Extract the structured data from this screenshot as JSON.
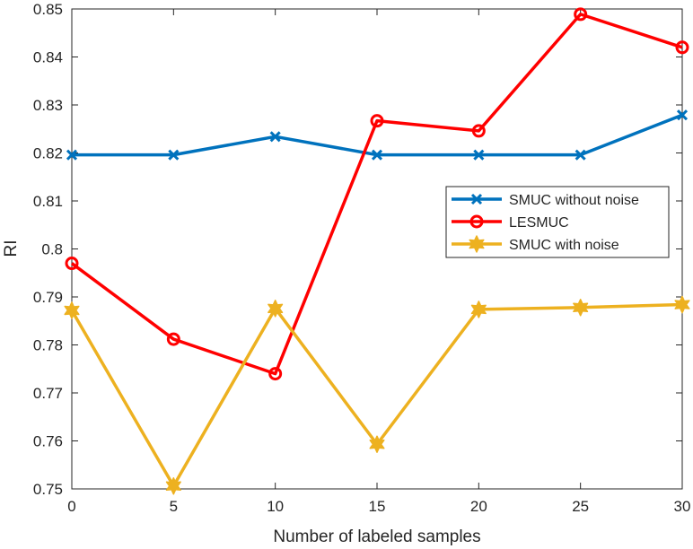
{
  "chart_data": {
    "type": "line",
    "title": "",
    "xlabel": "Number of labeled samples",
    "ylabel": "RI",
    "xlim": [
      0,
      30
    ],
    "ylim": [
      0.75,
      0.85
    ],
    "x_ticks": [
      0,
      5,
      10,
      15,
      20,
      25,
      30
    ],
    "y_ticks": [
      0.75,
      0.76,
      0.77,
      0.78,
      0.79,
      0.8,
      0.81,
      0.82,
      0.83,
      0.84,
      0.85
    ],
    "y_tick_labels": [
      "0.75",
      "0.76",
      "0.77",
      "0.78",
      "0.79",
      "0.8",
      "0.81",
      "0.82",
      "0.83",
      "0.84",
      "0.85"
    ],
    "grid": false,
    "legend_position": "right",
    "x": [
      0,
      5,
      10,
      15,
      20,
      25,
      30
    ],
    "series": [
      {
        "name": "SMUC without noise",
        "color": "#0072BD",
        "marker": "x",
        "values": [
          0.8196,
          0.8196,
          0.8234,
          0.8196,
          0.8196,
          0.8196,
          0.8279
        ]
      },
      {
        "name": "LESMUC",
        "color": "#FF0000",
        "marker": "circle",
        "values": [
          0.797,
          0.7812,
          0.774,
          0.8267,
          0.8246,
          0.8489,
          0.842
        ]
      },
      {
        "name": "SMUC with noise",
        "color": "#EDB120",
        "marker": "hexagram",
        "values": [
          0.7872,
          0.7506,
          0.7876,
          0.7593,
          0.7874,
          0.7878,
          0.7884
        ]
      }
    ]
  }
}
